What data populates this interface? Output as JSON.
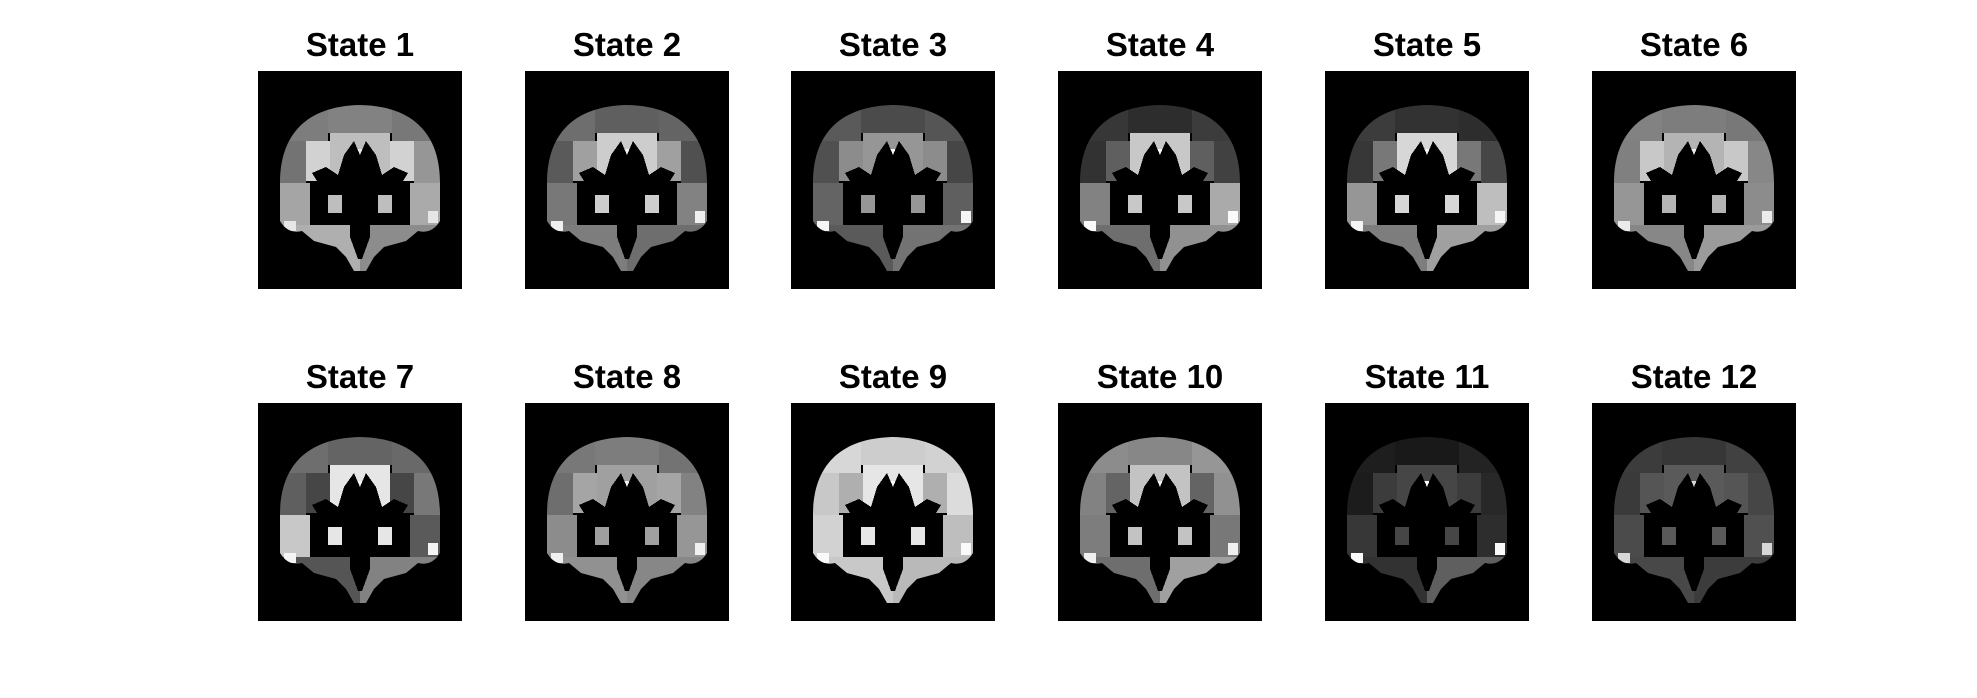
{
  "figure": {
    "panels": [
      {
        "title": "State 1",
        "lobe": [
          125,
          130,
          120,
          115,
          150,
          165,
          170,
          175,
          140,
          190,
          210
        ],
        "accent": 230
      },
      {
        "title": "State 2",
        "lobe": [
          110,
          95,
          100,
          90,
          80,
          120,
          130,
          125,
          110,
          205,
          160
        ],
        "accent": 240
      },
      {
        "title": "State 3",
        "lobe": [
          90,
          75,
          85,
          80,
          70,
          100,
          95,
          90,
          115,
          150,
          140
        ],
        "accent": 245
      },
      {
        "title": "State 4",
        "lobe": [
          55,
          45,
          60,
          50,
          65,
          130,
          170,
          110,
          145,
          200,
          95
        ],
        "accent": 250
      },
      {
        "title": "State 5",
        "lobe": [
          60,
          50,
          45,
          55,
          70,
          150,
          190,
          125,
          160,
          215,
          120
        ],
        "accent": 245
      },
      {
        "title": "State 6",
        "lobe": [
          130,
          125,
          120,
          128,
          135,
          150,
          140,
          135,
          155,
          180,
          200
        ],
        "accent": 235
      },
      {
        "title": "State 7",
        "lobe": [
          110,
          100,
          105,
          95,
          120,
          200,
          90,
          85,
          130,
          230,
          70
        ],
        "accent": 245
      },
      {
        "title": "State 8",
        "lobe": [
          120,
          125,
          115,
          110,
          130,
          140,
          150,
          145,
          135,
          160,
          165
        ],
        "accent": 240
      },
      {
        "title": "State 9",
        "lobe": [
          215,
          205,
          210,
          200,
          220,
          210,
          190,
          200,
          185,
          230,
          175
        ],
        "accent": 250
      },
      {
        "title": "State 10",
        "lobe": [
          140,
          135,
          150,
          130,
          145,
          125,
          120,
          110,
          160,
          195,
          100
        ],
        "accent": 240
      },
      {
        "title": "State 11",
        "lobe": [
          30,
          25,
          35,
          28,
          40,
          55,
          45,
          50,
          95,
          70,
          60
        ],
        "accent": 250
      },
      {
        "title": "State 12",
        "lobe": [
          60,
          55,
          65,
          58,
          70,
          75,
          80,
          72,
          60,
          90,
          85
        ],
        "accent": 215
      }
    ]
  }
}
